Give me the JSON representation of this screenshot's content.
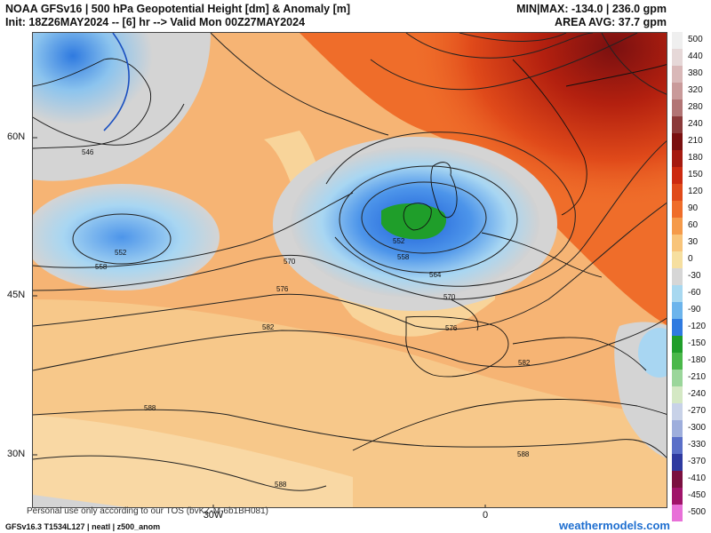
{
  "header": {
    "title_line": "NOAA GFSv16 | 500 hPa Geopotential Height [dm] & Anomaly [m]",
    "init_line": "Init: 18Z26MAY2024 -- [6] hr --> Valid Mon 00Z27MAY2024",
    "minmax": "MIN|MAX: -134.0 | 236.0 gpm",
    "area_avg": "AREA AVG: 37.7 gpm"
  },
  "axes": {
    "lat_labels": [
      "60N",
      "45N",
      "30N"
    ],
    "lon_labels": [
      "30W",
      "0"
    ]
  },
  "contour_labels": [
    "546",
    "552",
    "552",
    "558",
    "558",
    "564",
    "570",
    "570",
    "576",
    "576",
    "582",
    "582",
    "588",
    "588",
    "588"
  ],
  "colorbar": {
    "labels": [
      "500",
      "440",
      "380",
      "320",
      "280",
      "240",
      "210",
      "180",
      "150",
      "120",
      "90",
      "60",
      "30",
      "0",
      "-30",
      "-60",
      "-90",
      "-120",
      "-150",
      "-180",
      "-210",
      "-240",
      "-270",
      "-300",
      "-330",
      "-370",
      "-410",
      "-450",
      "-500"
    ],
    "colors": [
      "#efefef",
      "#e6d8d8",
      "#d9b8b8",
      "#c99a9a",
      "#b27575",
      "#8b3a3a",
      "#7a1010",
      "#a51a10",
      "#cc2a10",
      "#e04a1a",
      "#ef6d2a",
      "#f59a4a",
      "#f8c47a",
      "#f6dfa0",
      "#d6d6d6",
      "#a8d8f0",
      "#6cb4ec",
      "#2f7ae0",
      "#1f9e2a",
      "#4ab84a",
      "#9bd69b",
      "#d4e8c4",
      "#c8d2e8",
      "#9eaedc",
      "#5a6fc8",
      "#2f3aa0",
      "#7a1040",
      "#a0146a",
      "#e870d8"
    ]
  },
  "footer": {
    "note": "Personal use only according to our TOS (bvKZ-M-6b1BH081)",
    "model_info": "GFSv16.3 T1534L127 | neatl | z500_anom",
    "brand": "weathermodels.com"
  }
}
